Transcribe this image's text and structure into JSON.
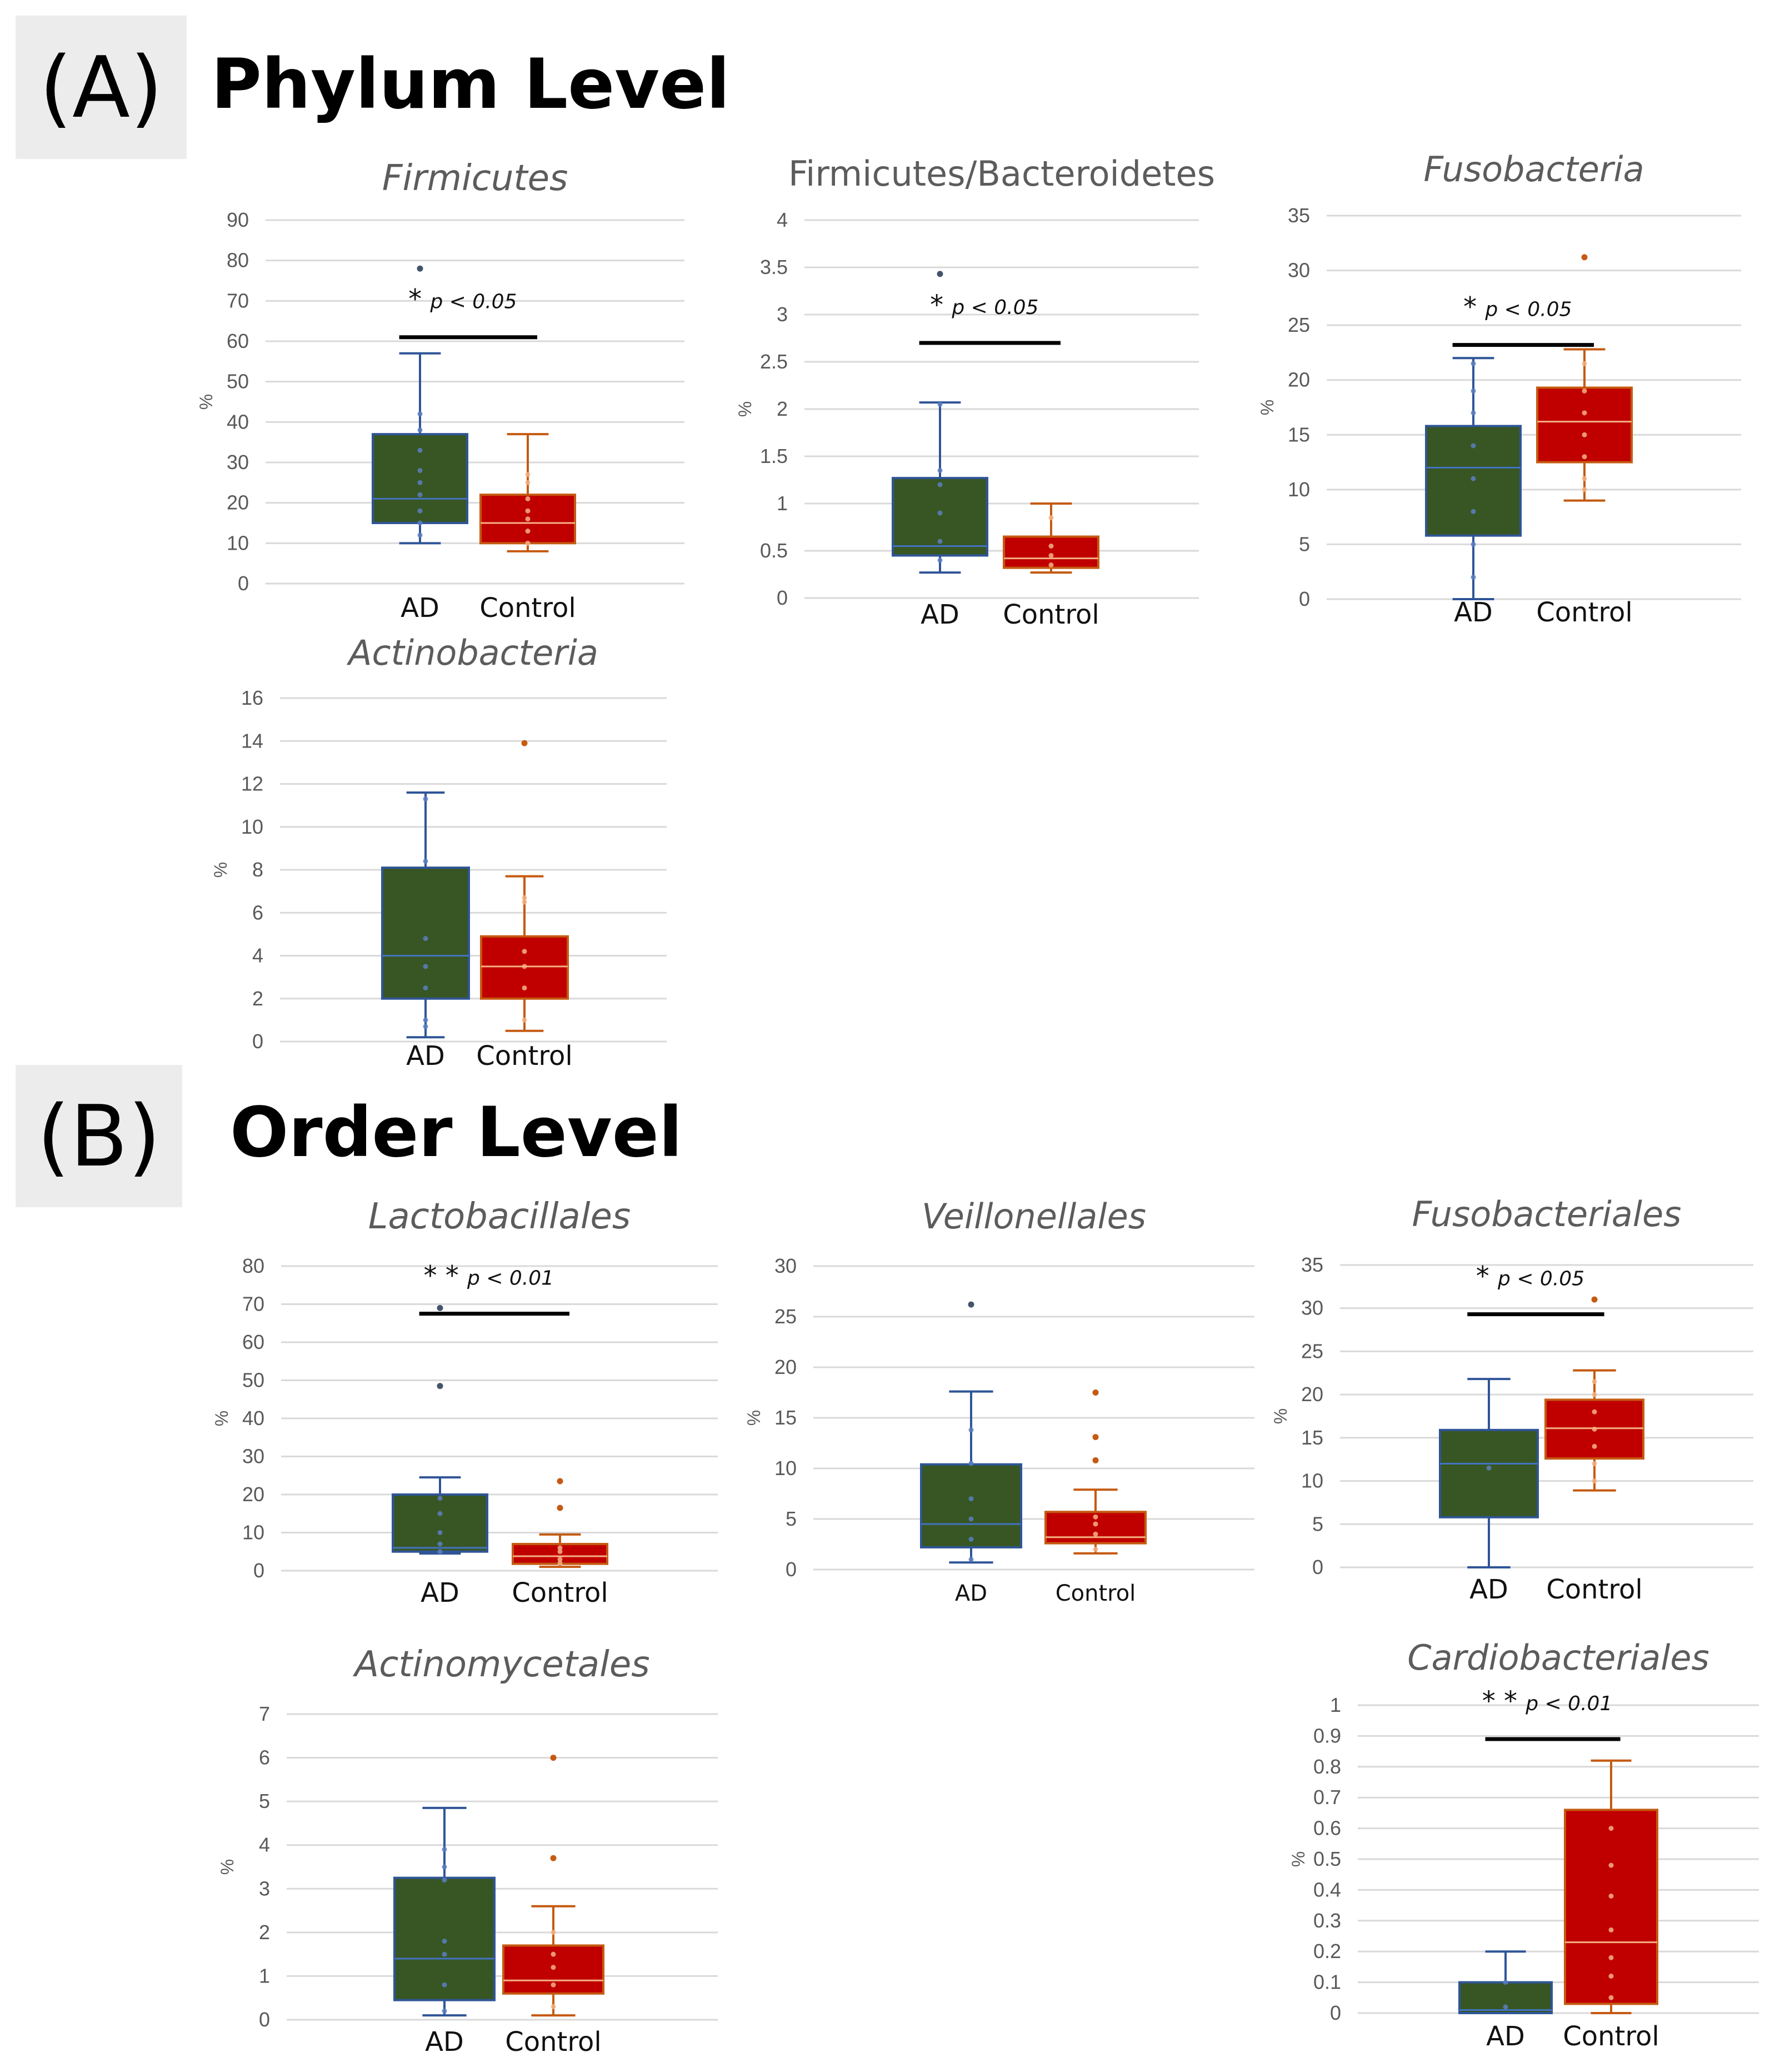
{
  "sections": [
    {
      "label": "(A)",
      "title": "Phylum Level"
    },
    {
      "label": "(B)",
      "title": "Order Level"
    }
  ],
  "colors": {
    "ad_box": "#375623",
    "control_box": "#c00000",
    "ad_whisker": "#2f5597",
    "control_whisker": "#c55a11",
    "grid": "#d9d9d9",
    "bracket": "#000000"
  },
  "chart_data": [
    {
      "type": "box",
      "id": "firmicutes",
      "title": "Firmicutes",
      "italic": true,
      "ylabel": "%",
      "ylim": [
        0,
        90
      ],
      "yticks": [
        0,
        10,
        20,
        30,
        40,
        50,
        60,
        70,
        80,
        90
      ],
      "categories": [
        "AD",
        "Control"
      ],
      "series": [
        {
          "name": "AD",
          "min": 10,
          "q1": 15,
          "median": 21,
          "q3": 37,
          "max": 57,
          "outliers": [
            78
          ],
          "points": [
            12,
            15,
            18,
            22,
            25,
            28,
            33,
            38,
            42
          ]
        },
        {
          "name": "Control",
          "min": 8,
          "q1": 10,
          "median": 15,
          "q3": 22,
          "max": 37,
          "outliers": [],
          "points": [
            10,
            13,
            16,
            18,
            21,
            25,
            27
          ]
        }
      ],
      "annotation": {
        "stars": "*",
        "text": "p < 0.05",
        "y": 61
      }
    },
    {
      "type": "box",
      "id": "fb-ratio",
      "title": "Firmicutes/Bacteroidetes",
      "italic": false,
      "ylabel": "%",
      "ylim": [
        0,
        4
      ],
      "yticks": [
        "0",
        "0.5",
        "1",
        "1.5",
        "2",
        "2.5",
        "3",
        "3.5",
        "4"
      ],
      "categories": [
        "AD",
        "Control"
      ],
      "series": [
        {
          "name": "AD",
          "min": 0.27,
          "q1": 0.45,
          "median": 0.55,
          "q3": 1.27,
          "max": 2.07,
          "outliers": [
            3.43
          ],
          "points": [
            0.4,
            0.6,
            0.9,
            1.2,
            1.35,
            2.05
          ]
        },
        {
          "name": "Control",
          "min": 0.27,
          "q1": 0.32,
          "median": 0.42,
          "q3": 0.65,
          "max": 1.0,
          "outliers": [],
          "points": [
            0.35,
            0.45,
            0.55,
            0.85
          ]
        }
      ],
      "annotation": {
        "stars": "*",
        "text": "p < 0.05",
        "y": 2.7
      }
    },
    {
      "type": "box",
      "id": "fusobacteria",
      "title": "Fusobacteria",
      "italic": true,
      "ylabel": "%",
      "ylim": [
        0,
        35
      ],
      "yticks": [
        0,
        5,
        10,
        15,
        20,
        25,
        30,
        35
      ],
      "categories": [
        "AD",
        "Control"
      ],
      "series": [
        {
          "name": "AD",
          "min": 0,
          "q1": 5.8,
          "median": 12,
          "q3": 15.8,
          "max": 22,
          "outliers": [],
          "points": [
            2,
            5,
            8,
            11,
            14,
            17,
            19,
            21.5
          ]
        },
        {
          "name": "Control",
          "min": 9,
          "q1": 12.5,
          "median": 16.2,
          "q3": 19.3,
          "max": 22.8,
          "outliers": [
            31.2
          ],
          "points": [
            10,
            11,
            13,
            15,
            17,
            19,
            21.5
          ]
        }
      ],
      "annotation": {
        "stars": "*",
        "text": "p < 0.05",
        "y": 23.2
      }
    },
    {
      "type": "box",
      "id": "actinobacteria",
      "title": "Actinobacteria",
      "italic": true,
      "ylabel": "%",
      "ylim": [
        0,
        16
      ],
      "yticks": [
        0,
        2,
        4,
        6,
        8,
        10,
        12,
        14,
        16
      ],
      "categories": [
        "AD",
        "Control"
      ],
      "series": [
        {
          "name": "AD",
          "min": 0.2,
          "q1": 2,
          "median": 4,
          "q3": 8.1,
          "max": 11.6,
          "outliers": [],
          "points": [
            0.7,
            1,
            2.5,
            3.5,
            4.8,
            8.4,
            11.3
          ]
        },
        {
          "name": "Control",
          "min": 0.5,
          "q1": 2,
          "median": 3.5,
          "q3": 4.9,
          "max": 7.7,
          "outliers": [
            13.9
          ],
          "points": [
            1,
            2.5,
            3.5,
            4.2,
            6.5,
            6.7
          ]
        }
      ],
      "annotation": null
    },
    {
      "type": "box",
      "id": "lactobacillales",
      "title": "Lactobacillales",
      "italic": true,
      "ylabel": "%",
      "ylim": [
        0,
        80
      ],
      "yticks": [
        0,
        10,
        20,
        30,
        40,
        50,
        60,
        70,
        80
      ],
      "categories": [
        "AD",
        "Control"
      ],
      "series": [
        {
          "name": "AD",
          "min": 4.5,
          "q1": 5,
          "median": 6,
          "q3": 20,
          "max": 24.5,
          "outliers": [
            48.5,
            69
          ],
          "points": [
            5,
            7,
            10,
            15,
            19
          ]
        },
        {
          "name": "Control",
          "min": 1,
          "q1": 1.8,
          "median": 3.8,
          "q3": 7,
          "max": 9.5,
          "outliers": [
            16.5,
            23.5
          ],
          "points": [
            2,
            3,
            5,
            6
          ]
        }
      ],
      "annotation": {
        "stars": "**",
        "text": "p < 0.01",
        "y": 67.5
      }
    },
    {
      "type": "box",
      "id": "veillonellales",
      "title": "Veillonellales",
      "italic": true,
      "ylabel": "%",
      "ylim": [
        0,
        30
      ],
      "yticks": [
        0,
        5,
        10,
        15,
        20,
        25,
        30
      ],
      "categories": [
        "AD",
        "Control"
      ],
      "series": [
        {
          "name": "AD",
          "min": 0.7,
          "q1": 2.2,
          "median": 4.5,
          "q3": 10.4,
          "max": 17.6,
          "outliers": [
            26.2
          ],
          "points": [
            1,
            3,
            5,
            7,
            10.5,
            13.8
          ]
        },
        {
          "name": "Control",
          "min": 1.6,
          "q1": 2.6,
          "median": 3.2,
          "q3": 5.7,
          "max": 7.9,
          "outliers": [
            10.8,
            13.1,
            17.5
          ],
          "points": [
            2,
            3.5,
            4.5,
            5.2
          ]
        }
      ],
      "annotation": null
    },
    {
      "type": "box",
      "id": "fusobacteriales",
      "title": "Fusobacteriales",
      "italic": true,
      "ylabel": "%",
      "ylim": [
        0,
        35
      ],
      "yticks": [
        0,
        5,
        10,
        15,
        20,
        25,
        30,
        35
      ],
      "categories": [
        "AD",
        "Control"
      ],
      "series": [
        {
          "name": "AD",
          "min": 0,
          "q1": 5.8,
          "median": 12,
          "q3": 15.9,
          "max": 21.8,
          "outliers": [],
          "points": [
            11.5
          ]
        },
        {
          "name": "Control",
          "min": 8.9,
          "q1": 12.6,
          "median": 16.1,
          "q3": 19.4,
          "max": 22.8,
          "outliers": [
            31
          ],
          "points": [
            10,
            12,
            14,
            16,
            18,
            20,
            21.5
          ]
        }
      ],
      "annotation": {
        "stars": "*",
        "text": "p < 0.05",
        "y": 29.3
      }
    },
    {
      "type": "box",
      "id": "actinomycetales",
      "title": "Actinomycetales",
      "italic": true,
      "ylabel": "%",
      "ylim": [
        0,
        7
      ],
      "yticks": [
        0,
        1,
        2,
        3,
        4,
        5,
        6,
        7
      ],
      "categories": [
        "AD",
        "Control"
      ],
      "series": [
        {
          "name": "AD",
          "min": 0.1,
          "q1": 0.45,
          "median": 1.4,
          "q3": 3.25,
          "max": 4.85,
          "outliers": [],
          "points": [
            0.2,
            0.8,
            1.5,
            1.8,
            3.2,
            3.5,
            3.9
          ]
        },
        {
          "name": "Control",
          "min": 0.1,
          "q1": 0.6,
          "median": 0.9,
          "q3": 1.7,
          "max": 2.6,
          "outliers": [
            3.7,
            6
          ],
          "points": [
            0.3,
            0.8,
            1.2,
            1.5,
            2
          ]
        }
      ],
      "annotation": null
    },
    {
      "type": "box",
      "id": "cardiobacteriales",
      "title": "Cardiobacteriales",
      "italic": true,
      "ylabel": "%",
      "ylim": [
        0,
        1
      ],
      "yticks": [
        "0",
        "0.1",
        "0.2",
        "0.3",
        "0.4",
        "0.5",
        "0.6",
        "0.7",
        "0.8",
        "0.9",
        "1"
      ],
      "categories": [
        "AD",
        "Control"
      ],
      "series": [
        {
          "name": "AD",
          "min": 0,
          "q1": 0,
          "median": 0.01,
          "q3": 0.1,
          "max": 0.2,
          "outliers": [],
          "points": [
            0.02,
            0.1
          ]
        },
        {
          "name": "Control",
          "min": 0,
          "q1": 0.03,
          "median": 0.23,
          "q3": 0.66,
          "max": 0.82,
          "outliers": [],
          "points": [
            0.05,
            0.12,
            0.18,
            0.27,
            0.38,
            0.48,
            0.6
          ]
        }
      ],
      "annotation": {
        "stars": "**",
        "text": "p < 0.01",
        "y": 0.89
      }
    }
  ]
}
